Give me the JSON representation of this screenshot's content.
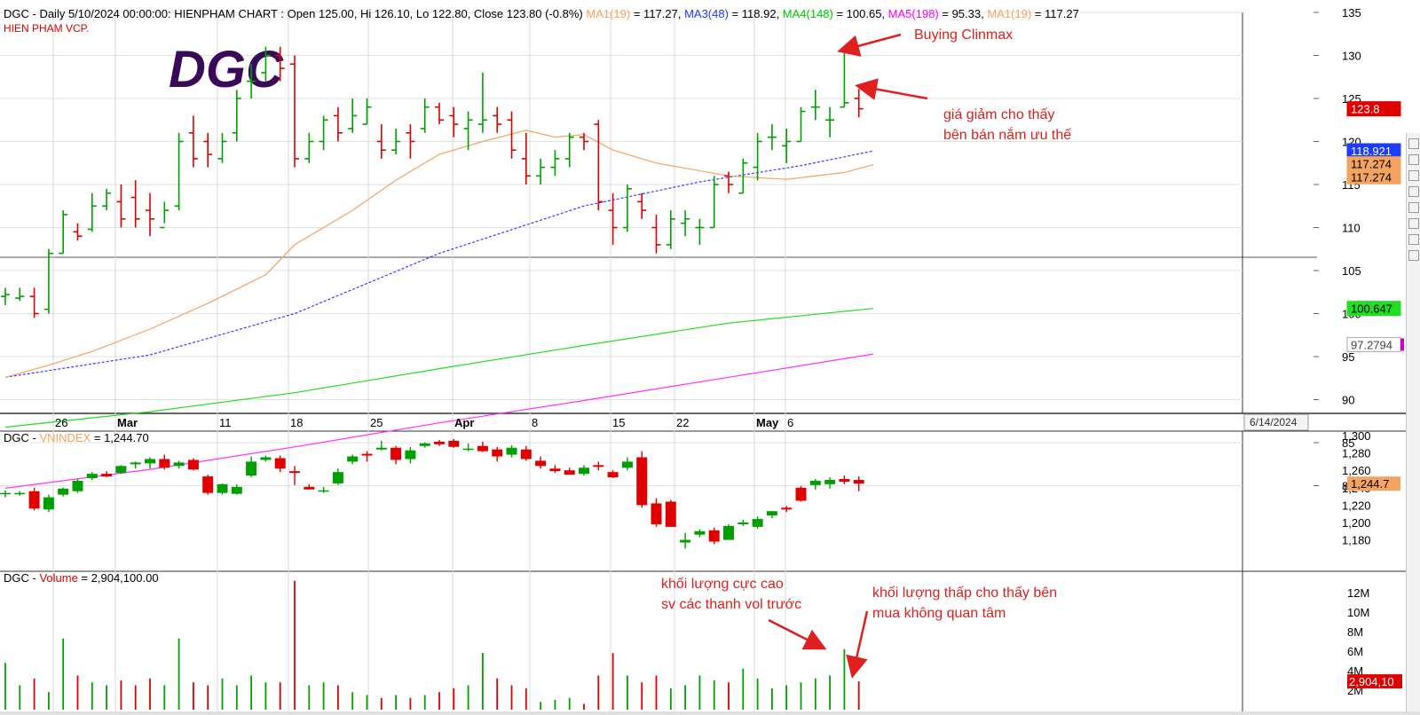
{
  "header": {
    "line1": "DGC - Daily 5/10/2024 00:00:00: HIENPHAM CHART : Open 125.00, Hi 126.10, Lo 122.80, Close 123.80 (-0.8%)",
    "line1_ma": [
      {
        "text": "MA1(19)",
        "color": "#f4a460"
      },
      {
        "text": " = 117.27, ",
        "color": "#000000"
      },
      {
        "text": "MA3(48)",
        "color": "#1e3cff"
      },
      {
        "text": " = 118.92, ",
        "color": "#000000"
      },
      {
        "text": "MA4(148)",
        "color": "#00c800"
      },
      {
        "text": " = 100.65, ",
        "color": "#000000"
      },
      {
        "text": "MA5(198)",
        "color": "#ff00ff"
      },
      {
        "text": " = 95.33, ",
        "color": "#000000"
      },
      {
        "text": "MA1(19)",
        "color": "#f4a460"
      },
      {
        "text": " = 117.27",
        "color": "#000000"
      }
    ],
    "line2": "HIEN PHAM VCP."
  },
  "logo_text": "DGC",
  "annotations": {
    "buying_climax": "Buying Clinmax",
    "sell_line1": "giá giảm cho thấy",
    "sell_line2": "bên bán nắm ưu thế",
    "vol_high_line1": "khối lượng cực cao",
    "vol_high_line2": "sv các thanh vol trước",
    "vol_low_line1": "khối lượng thấp cho thấy bên",
    "vol_low_line2": "mua không quan tâm"
  },
  "colors": {
    "up": "#00a000",
    "down": "#e00000",
    "ma19": "#f4a460",
    "ma48": "#3a3aff",
    "ma148": "#22dd22",
    "ma198": "#ff33ff",
    "annotation": "#e02020",
    "logo": "#3a0a5a"
  },
  "price_axis": {
    "ticks": [
      "135",
      "130",
      "125",
      "120",
      "115",
      "110",
      "105",
      "100",
      "95",
      "90",
      "85",
      "80"
    ],
    "badges": [
      {
        "text": "123.8",
        "bg": "#e00000",
        "fg": "#ffffff"
      },
      {
        "text": "118.921",
        "bg": "#1e3cff",
        "fg": "#ffffff"
      },
      {
        "text": "117.274",
        "bg": "#f4a460",
        "fg": "#000000"
      },
      {
        "text": "117.274",
        "bg": "#f4a460",
        "fg": "#000000"
      },
      {
        "text": "100.647",
        "bg": "#22dd22",
        "fg": "#000000"
      },
      {
        "text": "97.2794",
        "bg": "#ffffff",
        "fg": "#444444"
      }
    ]
  },
  "date_axis": {
    "labels": [
      "26",
      "Mar",
      "11",
      "18",
      "25",
      "Apr",
      "8",
      "15",
      "22",
      "May",
      "6"
    ],
    "future_label": "6/14/2024"
  },
  "vnindex": {
    "title_prefix": "DGC - ",
    "title_name": "VNINDEX",
    "title_value": " = 1,244.70",
    "ticks": [
      "1,300",
      "1,280",
      "1,260",
      "1,240",
      "1,220",
      "1,200",
      "1,180"
    ],
    "badge": "1,244.7"
  },
  "volume": {
    "title_prefix": "DGC - ",
    "title_name": "Volume",
    "title_value": " = 2,904,100.00",
    "ticks": [
      "12M",
      "10M",
      "8M",
      "6M",
      "4M",
      "2M"
    ],
    "badge": "2,904,10"
  },
  "chart_data": {
    "type": "candlestick",
    "title": "DGC - Daily 5/10/2024",
    "x_labels": [
      "26",
      "Mar",
      "11",
      "18",
      "25",
      "Apr",
      "8",
      "15",
      "22",
      "May",
      "6"
    ],
    "ylim": [
      78,
      136
    ],
    "price": [
      [
        102,
        103,
        101,
        102.2
      ],
      [
        101.8,
        103,
        101.5,
        102
      ],
      [
        102,
        103,
        99.5,
        100
      ],
      [
        100.5,
        107.5,
        100,
        107
      ],
      [
        107,
        112,
        107,
        111.5
      ],
      [
        109.5,
        110.5,
        108.5,
        109
      ],
      [
        109.8,
        114,
        109.5,
        112.5
      ],
      [
        112.5,
        114.5,
        112,
        114
      ],
      [
        113,
        115,
        110,
        111
      ],
      [
        113.5,
        115.5,
        110,
        111
      ],
      [
        112,
        114,
        109,
        111
      ],
      [
        110,
        113,
        110.5,
        112
      ],
      [
        112.5,
        121,
        112,
        120
      ],
      [
        121,
        123,
        117,
        118
      ],
      [
        120,
        121,
        117,
        118.5
      ],
      [
        118,
        121,
        117.5,
        120
      ],
      [
        121,
        126,
        120,
        125
      ],
      [
        127,
        129,
        125,
        127
      ],
      [
        128,
        131,
        127,
        130
      ],
      [
        130,
        131,
        127,
        128.5
      ],
      [
        129,
        130,
        117,
        118
      ],
      [
        118,
        121,
        117.5,
        120
      ],
      [
        120,
        123,
        119,
        122.5
      ],
      [
        123,
        124,
        120,
        121
      ],
      [
        121.5,
        125,
        121,
        123
      ],
      [
        122,
        125,
        122,
        124
      ],
      [
        120,
        122,
        118,
        119
      ],
      [
        119,
        121.5,
        118.5,
        120
      ],
      [
        121,
        122,
        118,
        120
      ],
      [
        121.5,
        125,
        121,
        124
      ],
      [
        124,
        124.5,
        122,
        122.5
      ],
      [
        123,
        124,
        120.5,
        122
      ],
      [
        121.5,
        123.5,
        119,
        122.5
      ],
      [
        122,
        128,
        121,
        122.5
      ],
      [
        123,
        124,
        121,
        122
      ],
      [
        122.5,
        123.5,
        118,
        119
      ],
      [
        118,
        121,
        115,
        116
      ],
      [
        116,
        118,
        115,
        117
      ],
      [
        117,
        119,
        116,
        118
      ],
      [
        118,
        121,
        117,
        120.5
      ],
      [
        120.5,
        121,
        119,
        120
      ],
      [
        122,
        122.5,
        112,
        113
      ],
      [
        112,
        114,
        108,
        110
      ],
      [
        110,
        115,
        109.5,
        114.5
      ],
      [
        113,
        114,
        111,
        112
      ],
      [
        110,
        111.5,
        107,
        108
      ],
      [
        108,
        112,
        107.5,
        111
      ],
      [
        110.5,
        112,
        109,
        111
      ],
      [
        110,
        111,
        108,
        110
      ],
      [
        110,
        116,
        110,
        115
      ],
      [
        116,
        116.5,
        114,
        115
      ],
      [
        114,
        118,
        114,
        117.5
      ],
      [
        117,
        121,
        115.5,
        120
      ],
      [
        120.5,
        122,
        119,
        120.5
      ],
      [
        119.5,
        121.5,
        117.5,
        120
      ],
      [
        120,
        124,
        120,
        123.5
      ],
      [
        124,
        126,
        122.5,
        124
      ],
      [
        122.5,
        124,
        120.5,
        122.5
      ],
      [
        124,
        131,
        124,
        124.5
      ],
      [
        125,
        126.1,
        122.8,
        123.8
      ]
    ],
    "vnindex_ylim": [
      1170,
      1305
    ],
    "vnindex": [
      [
        1233,
        1237,
        1229,
        1234
      ],
      [
        1233,
        1236,
        1231,
        1234
      ],
      [
        1236,
        1240,
        1214,
        1216
      ],
      [
        1215,
        1232,
        1212,
        1229
      ],
      [
        1232,
        1240,
        1230,
        1239
      ],
      [
        1236,
        1250,
        1234,
        1248
      ],
      [
        1251,
        1258,
        1249,
        1256
      ],
      [
        1256,
        1259,
        1252,
        1253
      ],
      [
        1257,
        1266,
        1256,
        1265
      ],
      [
        1267,
        1270,
        1262,
        1269
      ],
      [
        1268,
        1275,
        1262,
        1273
      ],
      [
        1273,
        1278,
        1261,
        1263
      ],
      [
        1265,
        1271,
        1262,
        1269
      ],
      [
        1272,
        1274,
        1260,
        1261
      ],
      [
        1253,
        1255,
        1232,
        1234
      ],
      [
        1234,
        1245,
        1232,
        1244
      ],
      [
        1233,
        1244,
        1232,
        1241
      ],
      [
        1254,
        1276,
        1252,
        1270
      ],
      [
        1272,
        1277,
        1270,
        1275
      ],
      [
        1274,
        1277,
        1258,
        1262
      ],
      [
        1259,
        1265,
        1243,
        1257
      ],
      [
        1241,
        1244,
        1238,
        1238
      ],
      [
        1237,
        1241,
        1234,
        1237
      ],
      [
        1245,
        1262,
        1243,
        1258
      ],
      [
        1270,
        1278,
        1267,
        1276
      ],
      [
        1279,
        1282,
        1270,
        1277
      ],
      [
        1284,
        1294,
        1283,
        1286
      ],
      [
        1286,
        1288,
        1267,
        1272
      ],
      [
        1273,
        1287,
        1268,
        1283
      ],
      [
        1288,
        1292,
        1286,
        1291
      ],
      [
        1293,
        1295,
        1288,
        1290
      ],
      [
        1294,
        1296,
        1286,
        1287
      ],
      [
        1285,
        1291,
        1282,
        1285
      ],
      [
        1288,
        1293,
        1281,
        1282
      ],
      [
        1284,
        1287,
        1270,
        1276
      ],
      [
        1278,
        1289,
        1275,
        1286
      ],
      [
        1284,
        1288,
        1271,
        1273
      ],
      [
        1271,
        1276,
        1262,
        1265
      ],
      [
        1262,
        1266,
        1257,
        1259
      ],
      [
        1260,
        1263,
        1255,
        1255
      ],
      [
        1256,
        1266,
        1254,
        1263
      ],
      [
        1266,
        1270,
        1260,
        1264
      ],
      [
        1258,
        1260,
        1251,
        1252
      ],
      [
        1263,
        1275,
        1260,
        1270
      ],
      [
        1275,
        1282,
        1217,
        1220
      ],
      [
        1222,
        1228,
        1195,
        1198
      ],
      [
        1224,
        1226,
        1195,
        1195
      ],
      [
        1177,
        1188,
        1170,
        1180
      ],
      [
        1186,
        1192,
        1183,
        1190
      ],
      [
        1191,
        1194,
        1175,
        1178
      ],
      [
        1180,
        1198,
        1180,
        1196
      ],
      [
        1198,
        1203,
        1196,
        1200
      ],
      [
        1195,
        1207,
        1193,
        1204
      ],
      [
        1208,
        1213,
        1205,
        1213
      ],
      [
        1217,
        1219,
        1212,
        1215
      ],
      [
        1240,
        1242,
        1224,
        1225
      ],
      [
        1243,
        1250,
        1238,
        1248
      ],
      [
        1244,
        1252,
        1239,
        1249
      ],
      [
        1250,
        1254,
        1244,
        1247
      ],
      [
        1249,
        1253,
        1236,
        1244.7
      ]
    ],
    "volume_ylim": [
      0,
      13.5
    ],
    "volume_millions": [
      4.8,
      2.5,
      3.2,
      1.8,
      7.3,
      3.5,
      2.8,
      2.5,
      3.0,
      2.5,
      3.2,
      2.5,
      7.3,
      2.8,
      2.5,
      3.2,
      2.5,
      3.5,
      2.8,
      2.8,
      13.2,
      2.5,
      2.8,
      2.5,
      1.8,
      1.5,
      1.2,
      1.5,
      1.2,
      1.5,
      1.8,
      2.2,
      2.5,
      5.8,
      3.2,
      2.5,
      2.2,
      0.8,
      1.0,
      1.2,
      0.6,
      3.5,
      5.8,
      3.5,
      2.8,
      3.5,
      2.2,
      2.5,
      3.5,
      3.0,
      2.8,
      4.2,
      3.2,
      2.2,
      2.5,
      2.8,
      3.2,
      3.5,
      6.2,
      2.9
    ],
    "ma19": [
      [
        0,
        92.6
      ],
      [
        3,
        94
      ],
      [
        6,
        95.6
      ],
      [
        10,
        98.2
      ],
      [
        14,
        101.2
      ],
      [
        18,
        104.5
      ],
      [
        20,
        108
      ],
      [
        24,
        112
      ],
      [
        27,
        115.5
      ],
      [
        30,
        118.5
      ],
      [
        33,
        120
      ],
      [
        36,
        121.3
      ],
      [
        38,
        120.5
      ],
      [
        40,
        120.8
      ],
      [
        42,
        119
      ],
      [
        45,
        117.5
      ],
      [
        50,
        116
      ],
      [
        54,
        115.6
      ],
      [
        58,
        116.4
      ],
      [
        60,
        117.3
      ]
    ],
    "ma48": [
      [
        0,
        92.6
      ],
      [
        10,
        95.2
      ],
      [
        20,
        100
      ],
      [
        30,
        107
      ],
      [
        40,
        112.5
      ],
      [
        48,
        115.3
      ],
      [
        55,
        117.2
      ],
      [
        60,
        118.9
      ]
    ],
    "ma148": [
      [
        0,
        86.8
      ],
      [
        10,
        88.6
      ],
      [
        20,
        90.8
      ],
      [
        30,
        93.6
      ],
      [
        40,
        96.3
      ],
      [
        50,
        98.9
      ],
      [
        60,
        100.6
      ]
    ],
    "ma198": [
      [
        0,
        79.7
      ],
      [
        10,
        81.9
      ],
      [
        20,
        84.5
      ],
      [
        30,
        87.3
      ],
      [
        40,
        89.9
      ],
      [
        50,
        92.6
      ],
      [
        60,
        95.3
      ]
    ]
  }
}
